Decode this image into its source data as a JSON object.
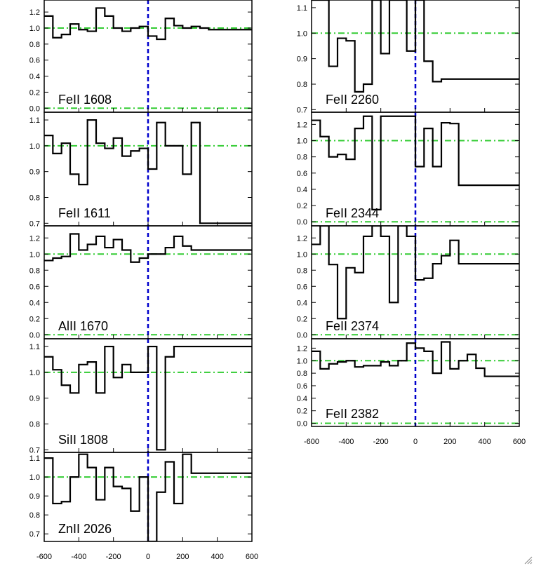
{
  "chart_data": [
    {
      "type": "line",
      "title": "",
      "label": "FeII 1608",
      "xlim": [
        -600,
        600
      ],
      "ylim": [
        -0.05,
        1.35
      ],
      "yticks": [
        0.0,
        0.2,
        0.4,
        0.6,
        0.8,
        1.0,
        1.2
      ],
      "ytick_labels": [
        "0.0",
        "0.2",
        "0.4",
        "0.6",
        "0.8",
        "1.0",
        "1.2"
      ],
      "xticks": [],
      "xtick_labels": [],
      "reference_y": [
        1.0,
        0.0
      ],
      "reference_x": 0,
      "x": [
        -600,
        -550,
        -500,
        -450,
        -400,
        -350,
        -300,
        -250,
        -200,
        -150,
        -100,
        -50,
        0,
        50,
        100,
        150,
        200,
        250,
        300,
        350,
        400,
        450,
        500,
        550,
        600
      ],
      "y": [
        1.15,
        0.88,
        0.92,
        1.05,
        0.98,
        0.96,
        1.25,
        1.15,
        1.0,
        0.96,
        1.0,
        1.02,
        0.9,
        0.86,
        1.12,
        1.03,
        1.0,
        1.02,
        1.0,
        0.98,
        0.98,
        0.98,
        0.98,
        0.98,
        0.98
      ]
    },
    {
      "type": "line",
      "title": "",
      "label": "FeII 1611",
      "xlim": [
        -600,
        600
      ],
      "ylim": [
        0.69,
        1.13
      ],
      "yticks": [
        0.7,
        0.8,
        0.9,
        1.0,
        1.1
      ],
      "ytick_labels": [
        "0.7",
        "0.8",
        "0.9",
        "1.0",
        "1.1"
      ],
      "xticks": [],
      "xtick_labels": [],
      "reference_y": [
        1.0
      ],
      "reference_x": 0,
      "x": [
        -600,
        -550,
        -500,
        -450,
        -400,
        -350,
        -300,
        -250,
        -200,
        -150,
        -100,
        -50,
        0,
        50,
        100,
        150,
        200,
        250,
        300,
        350,
        400,
        450,
        500,
        550,
        600
      ],
      "y": [
        1.04,
        0.97,
        1.01,
        0.89,
        0.85,
        1.1,
        1.01,
        0.99,
        1.03,
        0.96,
        0.98,
        0.99,
        0.91,
        1.09,
        1.0,
        1.0,
        0.89,
        1.09,
        0.7,
        0.7,
        0.7,
        0.7,
        0.7,
        0.7,
        0.7
      ]
    },
    {
      "type": "line",
      "title": "",
      "label": "AlII 1670",
      "xlim": [
        -600,
        600
      ],
      "ylim": [
        -0.05,
        1.35
      ],
      "yticks": [
        0.0,
        0.2,
        0.4,
        0.6,
        0.8,
        1.0,
        1.2
      ],
      "ytick_labels": [
        "0.0",
        "0.2",
        "0.4",
        "0.6",
        "0.8",
        "1.0",
        "1.2"
      ],
      "xticks": [],
      "xtick_labels": [],
      "reference_y": [
        1.0,
        0.0
      ],
      "reference_x": 0,
      "x": [
        -600,
        -550,
        -500,
        -450,
        -400,
        -350,
        -300,
        -250,
        -200,
        -150,
        -100,
        -50,
        0,
        50,
        100,
        150,
        200,
        250,
        300,
        350,
        400,
        450,
        500,
        550,
        600
      ],
      "y": [
        0.92,
        0.95,
        0.97,
        1.25,
        1.05,
        1.12,
        1.22,
        1.08,
        1.18,
        1.05,
        0.9,
        0.95,
        1.0,
        1.0,
        1.08,
        1.22,
        1.1,
        1.05,
        1.05,
        1.05,
        1.05,
        1.05,
        1.05,
        1.05,
        1.05
      ]
    },
    {
      "type": "line",
      "title": "",
      "label": "SiII 1808",
      "xlim": [
        -600,
        600
      ],
      "ylim": [
        0.69,
        1.13
      ],
      "yticks": [
        0.7,
        0.8,
        0.9,
        1.0,
        1.1
      ],
      "ytick_labels": [
        "0.7",
        "0.8",
        "0.9",
        "1.0",
        "1.1"
      ],
      "xticks": [],
      "xtick_labels": [],
      "reference_y": [
        1.0
      ],
      "reference_x": 0,
      "x": [
        -600,
        -550,
        -500,
        -450,
        -400,
        -350,
        -300,
        -250,
        -200,
        -150,
        -100,
        -50,
        0,
        50,
        100,
        150,
        200,
        250,
        300,
        350,
        400,
        450,
        500,
        550,
        600
      ],
      "y": [
        1.06,
        1.01,
        0.95,
        0.92,
        1.03,
        1.04,
        0.92,
        1.1,
        0.98,
        1.03,
        1.0,
        1.0,
        1.1,
        0.7,
        1.06,
        1.1,
        1.1,
        1.1,
        1.1,
        1.1,
        1.1,
        1.1,
        1.1,
        1.1,
        1.1
      ]
    },
    {
      "type": "line",
      "title": "",
      "label": "ZnII 2026",
      "xlim": [
        -600,
        600
      ],
      "ylim": [
        0.66,
        1.13
      ],
      "yticks": [
        0.7,
        0.8,
        0.9,
        1.0,
        1.1
      ],
      "ytick_labels": [
        "0.7",
        "0.8",
        "0.9",
        "1.0",
        "1.1"
      ],
      "xticks": [
        -600,
        -400,
        -200,
        0,
        200,
        400,
        600
      ],
      "xtick_labels": [
        "-600",
        "-400",
        "-200",
        "0",
        "200",
        "400",
        "600"
      ],
      "reference_y": [
        1.0
      ],
      "reference_x": 0,
      "x": [
        -600,
        -550,
        -500,
        -450,
        -400,
        -350,
        -300,
        -250,
        -200,
        -150,
        -100,
        -50,
        0,
        50,
        100,
        150,
        200,
        250,
        300,
        350,
        400,
        450,
        500,
        550,
        600
      ],
      "y": [
        1.1,
        0.86,
        0.87,
        1.0,
        1.12,
        1.05,
        0.88,
        1.05,
        0.95,
        0.94,
        0.82,
        1.0,
        0.66,
        0.92,
        1.08,
        0.86,
        1.12,
        1.02,
        1.02,
        1.02,
        1.02,
        1.02,
        1.02,
        1.02,
        1.02
      ]
    },
    {
      "type": "line",
      "title": "",
      "label": "FeII 2260",
      "xlim": [
        -600,
        600
      ],
      "ylim": [
        0.69,
        1.13
      ],
      "yticks": [
        0.7,
        0.8,
        0.9,
        1.0,
        1.1
      ],
      "ytick_labels": [
        "0.7",
        "0.8",
        "0.9",
        "1.0",
        "1.1"
      ],
      "xticks": [],
      "xtick_labels": [],
      "reference_y": [
        1.0
      ],
      "reference_x": 0,
      "x": [
        -600,
        -550,
        -500,
        -450,
        -400,
        -350,
        -300,
        -250,
        -200,
        -150,
        -100,
        -50,
        0,
        50,
        100,
        150,
        200,
        250,
        300,
        350,
        400,
        450,
        500,
        550,
        600
      ],
      "y": [
        1.13,
        1.13,
        0.87,
        0.98,
        0.97,
        0.77,
        0.8,
        1.13,
        0.92,
        1.13,
        1.13,
        0.93,
        1.13,
        0.89,
        0.81,
        0.82,
        0.82,
        0.82,
        0.82,
        0.82,
        0.82,
        0.82,
        0.82,
        0.82,
        0.82
      ]
    },
    {
      "type": "line",
      "title": "",
      "label": "FeII 2344",
      "xlim": [
        -600,
        600
      ],
      "ylim": [
        -0.05,
        1.35
      ],
      "yticks": [
        0.0,
        0.2,
        0.4,
        0.6,
        0.8,
        1.0,
        1.2
      ],
      "ytick_labels": [
        "0.0",
        "0.2",
        "0.4",
        "0.6",
        "0.8",
        "1.0",
        "1.2"
      ],
      "xticks": [],
      "xtick_labels": [],
      "reference_y": [
        1.0,
        0.0
      ],
      "reference_x": 0,
      "x": [
        -600,
        -550,
        -500,
        -450,
        -400,
        -350,
        -300,
        -250,
        -200,
        -150,
        -100,
        -50,
        0,
        50,
        100,
        150,
        200,
        250,
        300,
        350,
        400,
        450,
        500,
        550,
        600
      ],
      "y": [
        1.25,
        1.05,
        0.8,
        0.83,
        0.77,
        1.15,
        1.3,
        0.15,
        1.3,
        1.3,
        1.3,
        1.3,
        0.68,
        1.15,
        0.68,
        1.22,
        1.21,
        0.45,
        0.45,
        0.45,
        0.45,
        0.45,
        0.45,
        0.45,
        0.45
      ]
    },
    {
      "type": "line",
      "title": "",
      "label": "FeII 2374",
      "xlim": [
        -600,
        600
      ],
      "ylim": [
        -0.05,
        1.35
      ],
      "yticks": [
        0.0,
        0.2,
        0.4,
        0.6,
        0.8,
        1.0,
        1.2
      ],
      "ytick_labels": [
        "0.0",
        "0.2",
        "0.4",
        "0.6",
        "0.8",
        "1.0",
        "1.2"
      ],
      "xticks": [],
      "xtick_labels": [],
      "reference_y": [
        1.0,
        0.0
      ],
      "reference_x": 0,
      "x": [
        -600,
        -550,
        -500,
        -450,
        -400,
        -350,
        -300,
        -250,
        -200,
        -150,
        -100,
        -50,
        0,
        50,
        100,
        150,
        200,
        250,
        300,
        350,
        400,
        450,
        500,
        550,
        600
      ],
      "y": [
        1.12,
        1.35,
        0.87,
        0.2,
        0.83,
        0.77,
        1.22,
        1.35,
        1.22,
        0.4,
        1.35,
        1.22,
        0.68,
        0.7,
        0.88,
        0.98,
        1.17,
        0.88,
        0.88,
        0.88,
        0.88,
        0.88,
        0.88,
        0.88,
        0.88
      ]
    },
    {
      "type": "line",
      "title": "",
      "label": "FeII 2382",
      "xlim": [
        -600,
        600
      ],
      "ylim": [
        -0.05,
        1.35
      ],
      "yticks": [
        0.0,
        0.2,
        0.4,
        0.6,
        0.8,
        1.0,
        1.2
      ],
      "ytick_labels": [
        "0.0",
        "0.2",
        "0.4",
        "0.6",
        "0.8",
        "1.0",
        "1.2"
      ],
      "xticks": [
        -600,
        -400,
        -200,
        0,
        200,
        400,
        600
      ],
      "xtick_labels": [
        "-600",
        "-400",
        "-200",
        "0",
        "200",
        "400",
        "600"
      ],
      "reference_y": [
        1.0,
        0.0
      ],
      "reference_x": 0,
      "x": [
        -600,
        -550,
        -500,
        -450,
        -400,
        -350,
        -300,
        -250,
        -200,
        -150,
        -100,
        -50,
        0,
        50,
        100,
        150,
        200,
        250,
        300,
        350,
        400,
        450,
        500,
        550,
        600
      ],
      "y": [
        1.15,
        0.87,
        0.95,
        0.98,
        1.0,
        0.9,
        0.92,
        0.92,
        0.98,
        0.92,
        1.0,
        1.28,
        1.2,
        1.15,
        0.8,
        1.3,
        0.87,
        1.0,
        1.1,
        0.88,
        0.75,
        0.75,
        0.75,
        0.75,
        0.75
      ]
    }
  ],
  "colors": {
    "data_line": "#000000",
    "reference_line": "#33cc33",
    "velocity_zero_line": "#0000cc",
    "axes": "#000000"
  },
  "icons": {
    "corner": "resize-grip-icon"
  }
}
